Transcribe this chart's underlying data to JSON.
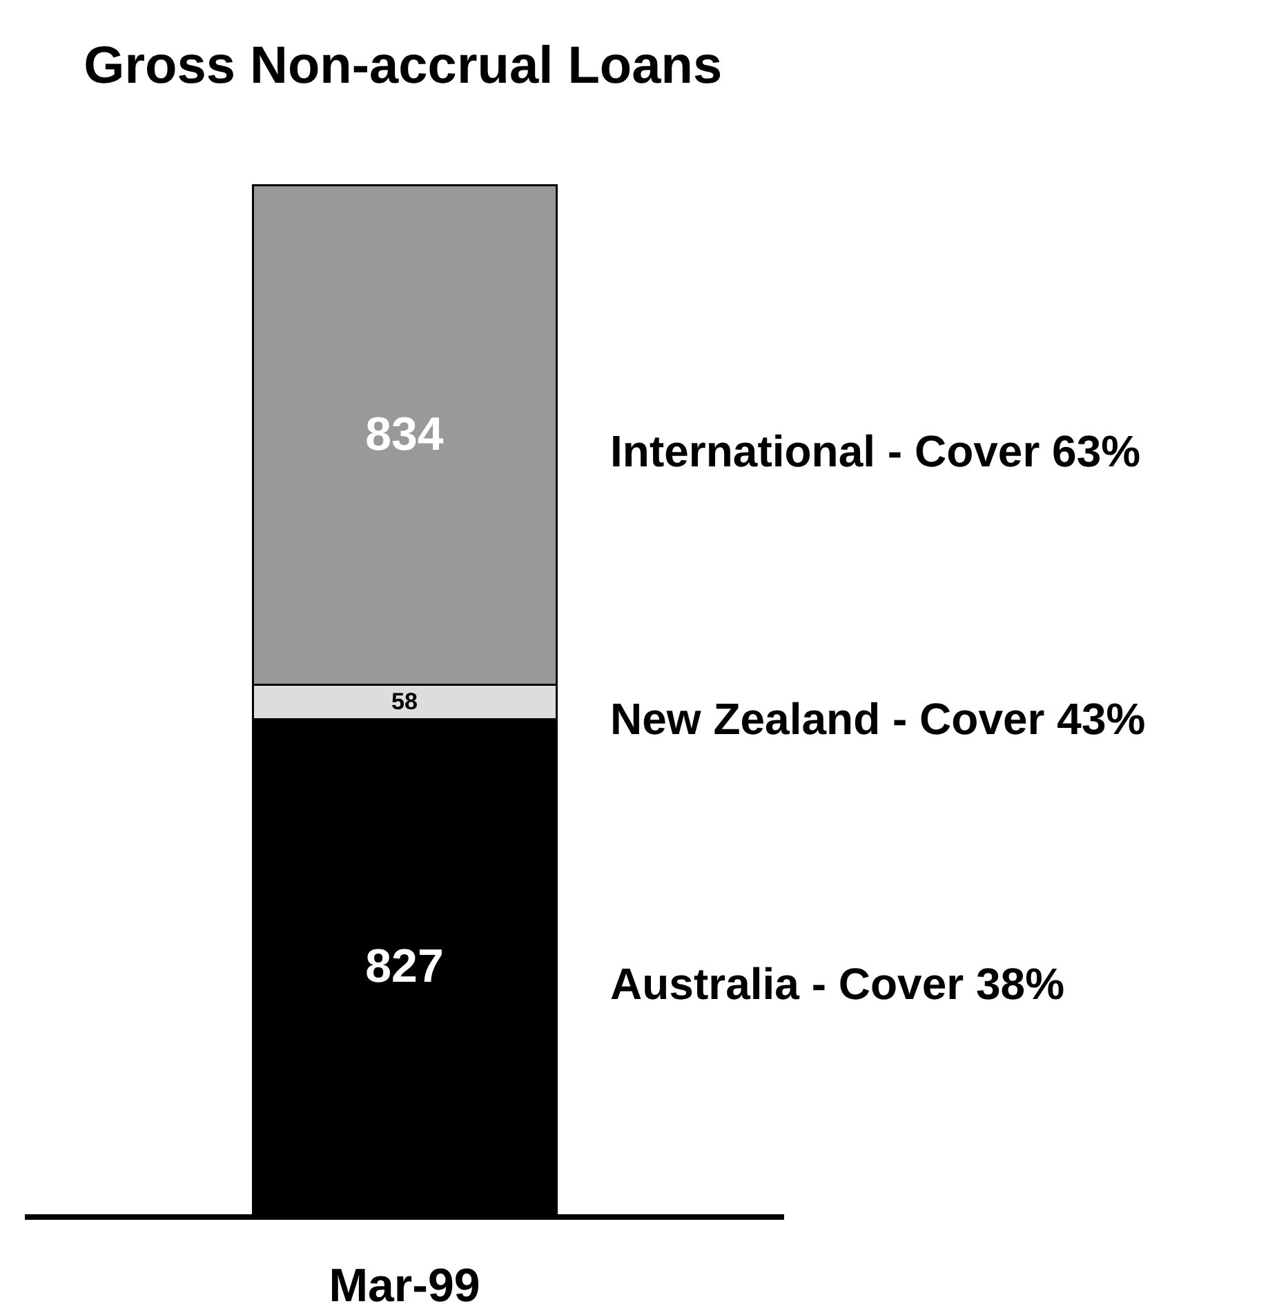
{
  "chart_data": {
    "type": "bar",
    "title": "Gross Non-accrual Loans",
    "categories": [
      "Mar-99"
    ],
    "series": [
      {
        "name": "Australia - Cover 38%",
        "color": "#000000",
        "values": [
          827
        ]
      },
      {
        "name": "New Zealand - Cover 43%",
        "color": "#dddddd",
        "values": [
          58
        ]
      },
      {
        "name": "International - Cover 63%",
        "color": "#999999",
        "values": [
          834
        ]
      }
    ],
    "stacked": true,
    "data_labels": true,
    "tick_labels": "x",
    "grid": false,
    "legend": false
  }
}
